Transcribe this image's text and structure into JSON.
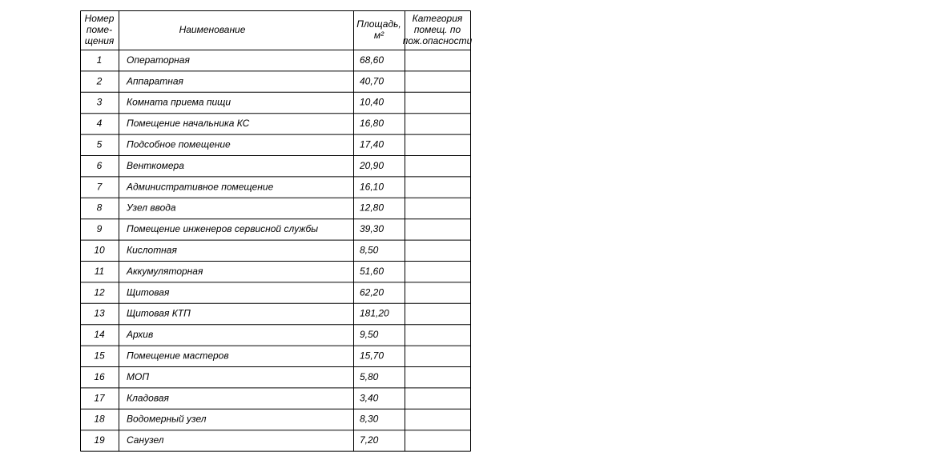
{
  "table": {
    "header": [
      [
        "Номер",
        "поме-",
        "щения"
      ],
      [
        "Наименование"
      ],
      [
        "Площадь,",
        "м²"
      ],
      [
        "Категория",
        "помещ. по",
        "пож.опасности"
      ]
    ],
    "rows": [
      [
        1,
        "Операторная",
        "68,60"
      ],
      [
        2,
        "Аппаратная",
        "40,70"
      ],
      [
        3,
        "Комната приема пищи",
        "10,40"
      ],
      [
        4,
        "Помещение начальника КС",
        "16,80"
      ],
      [
        5,
        "Подсобное помещение",
        "17,40"
      ],
      [
        6,
        "Венткомера",
        "20,90"
      ],
      [
        7,
        "Административное помещение",
        "16,10"
      ],
      [
        8,
        "Узел ввода",
        "12,80"
      ],
      [
        9,
        "Помещение инженеров сервисной службы",
        "39,30"
      ],
      [
        10,
        "Кислотная",
        "8,50"
      ],
      [
        11,
        "Аккумуляторная",
        "51,60"
      ],
      [
        12,
        "Щитовая",
        "62,20"
      ],
      [
        13,
        "Щитовая КТП",
        "181,20"
      ],
      [
        14,
        "Архив",
        "9,50"
      ],
      [
        15,
        "Помещение мастеров",
        "15,70"
      ],
      [
        16,
        "МОП",
        "5,80"
      ],
      [
        17,
        "Кладовая",
        "3,40"
      ],
      [
        18,
        "Водомерный узел",
        "8,30"
      ],
      [
        19,
        "Санузел",
        "7,20"
      ]
    ]
  }
}
